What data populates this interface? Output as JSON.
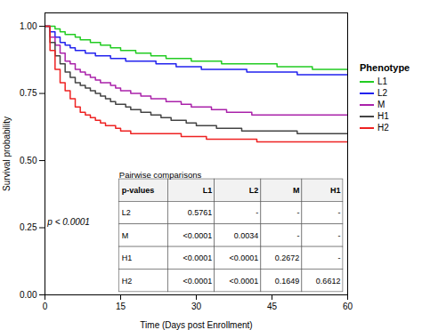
{
  "chart_data": {
    "type": "line",
    "xlabel": "Time (Days post Enrollment)",
    "ylabel": "Survival probability",
    "xlim": [
      0,
      60
    ],
    "ylim": [
      0.0,
      1.05
    ],
    "xticks": [
      0,
      15,
      30,
      45,
      60
    ],
    "yticks": [
      {
        "value": 0.0,
        "label": "0.00"
      },
      0.25,
      {
        "value": 0.5,
        "label": "0.50"
      },
      0.75,
      {
        "value": 1.0,
        "label": "1.00"
      }
    ],
    "grid": false,
    "legend": "right",
    "legend_title": "Phenotype",
    "x": [
      0,
      1,
      2,
      3,
      4,
      5,
      6,
      7,
      8,
      9,
      10,
      11,
      12,
      13,
      14,
      15,
      16,
      17,
      18,
      19,
      20,
      21,
      22,
      23,
      24,
      25,
      26,
      27,
      28,
      29,
      30,
      31,
      32,
      33,
      34,
      35,
      36,
      37,
      38,
      39,
      40,
      41,
      42,
      43,
      44,
      45,
      46,
      47,
      48,
      49,
      50,
      51,
      52,
      53,
      54,
      55,
      56,
      57,
      58,
      59,
      60
    ],
    "series": [
      {
        "name": "L1",
        "color": "#22CC22",
        "type": "step",
        "values": [
          1.0,
          1.0,
          0.99,
          0.98,
          0.97,
          0.97,
          0.96,
          0.95,
          0.95,
          0.94,
          0.94,
          0.93,
          0.93,
          0.92,
          0.92,
          0.91,
          0.91,
          0.91,
          0.9,
          0.9,
          0.9,
          0.89,
          0.89,
          0.89,
          0.88,
          0.88,
          0.88,
          0.88,
          0.88,
          0.87,
          0.87,
          0.87,
          0.87,
          0.87,
          0.87,
          0.86,
          0.86,
          0.86,
          0.86,
          0.86,
          0.86,
          0.86,
          0.86,
          0.86,
          0.86,
          0.86,
          0.85,
          0.85,
          0.85,
          0.85,
          0.85,
          0.85,
          0.85,
          0.84,
          0.84,
          0.84,
          0.84,
          0.84,
          0.84,
          0.84,
          0.84
        ]
      },
      {
        "name": "L2",
        "color": "#2222EE",
        "type": "step",
        "values": [
          1.0,
          0.98,
          0.96,
          0.94,
          0.93,
          0.92,
          0.91,
          0.91,
          0.9,
          0.9,
          0.89,
          0.89,
          0.89,
          0.88,
          0.88,
          0.88,
          0.87,
          0.87,
          0.87,
          0.87,
          0.87,
          0.87,
          0.86,
          0.86,
          0.86,
          0.86,
          0.85,
          0.85,
          0.85,
          0.85,
          0.85,
          0.84,
          0.84,
          0.84,
          0.84,
          0.84,
          0.84,
          0.84,
          0.84,
          0.84,
          0.83,
          0.83,
          0.83,
          0.83,
          0.83,
          0.83,
          0.83,
          0.83,
          0.83,
          0.83,
          0.82,
          0.82,
          0.82,
          0.82,
          0.82,
          0.82,
          0.82,
          0.82,
          0.82,
          0.82,
          0.82
        ]
      },
      {
        "name": "M",
        "color": "#AA22AA",
        "type": "step",
        "values": [
          1.0,
          0.96,
          0.93,
          0.9,
          0.87,
          0.86,
          0.84,
          0.83,
          0.82,
          0.81,
          0.8,
          0.79,
          0.79,
          0.78,
          0.77,
          0.76,
          0.76,
          0.75,
          0.75,
          0.74,
          0.74,
          0.73,
          0.73,
          0.73,
          0.72,
          0.72,
          0.72,
          0.71,
          0.71,
          0.7,
          0.7,
          0.7,
          0.7,
          0.69,
          0.69,
          0.69,
          0.68,
          0.68,
          0.68,
          0.68,
          0.68,
          0.67,
          0.67,
          0.67,
          0.67,
          0.67,
          0.67,
          0.67,
          0.67,
          0.67,
          0.67,
          0.67,
          0.67,
          0.67,
          0.67,
          0.67,
          0.67,
          0.67,
          0.67,
          0.67,
          0.67
        ]
      },
      {
        "name": "H1",
        "color": "#444444",
        "type": "step",
        "values": [
          1.0,
          0.94,
          0.89,
          0.86,
          0.83,
          0.81,
          0.79,
          0.78,
          0.77,
          0.76,
          0.75,
          0.74,
          0.73,
          0.72,
          0.71,
          0.71,
          0.7,
          0.69,
          0.69,
          0.68,
          0.68,
          0.67,
          0.67,
          0.66,
          0.66,
          0.65,
          0.65,
          0.65,
          0.64,
          0.64,
          0.63,
          0.63,
          0.63,
          0.63,
          0.62,
          0.62,
          0.62,
          0.62,
          0.62,
          0.61,
          0.61,
          0.61,
          0.61,
          0.61,
          0.61,
          0.61,
          0.61,
          0.61,
          0.61,
          0.61,
          0.6,
          0.6,
          0.6,
          0.6,
          0.6,
          0.6,
          0.6,
          0.6,
          0.6,
          0.6,
          0.6
        ]
      },
      {
        "name": "H2",
        "color": "#EE2222",
        "type": "step",
        "values": [
          1.0,
          0.91,
          0.84,
          0.79,
          0.76,
          0.73,
          0.7,
          0.68,
          0.67,
          0.66,
          0.65,
          0.64,
          0.63,
          0.63,
          0.62,
          0.61,
          0.61,
          0.6,
          0.6,
          0.6,
          0.6,
          0.6,
          0.6,
          0.6,
          0.6,
          0.6,
          0.6,
          0.59,
          0.59,
          0.59,
          0.59,
          0.59,
          0.58,
          0.58,
          0.58,
          0.58,
          0.58,
          0.58,
          0.58,
          0.58,
          0.58,
          0.58,
          0.57,
          0.57,
          0.57,
          0.57,
          0.57,
          0.57,
          0.57,
          0.57,
          0.57,
          0.57,
          0.57,
          0.57,
          0.57,
          0.57,
          0.57,
          0.57,
          0.57,
          0.57,
          0.57
        ]
      }
    ],
    "annotations": [
      {
        "text": "p < 0.0001",
        "x": 0.5,
        "y": 0.27
      }
    ],
    "table": {
      "title": "Pairwise comparisons",
      "col_headers": [
        "p-values",
        "L1",
        "L2",
        "M",
        "H1"
      ],
      "rows": [
        [
          "L2",
          "0.5761",
          "-",
          "-",
          "-"
        ],
        [
          "M",
          "<0.0001",
          "0.0034",
          "-",
          "-"
        ],
        [
          "H1",
          "<0.0001",
          "<0.0001",
          "0.2672",
          "-"
        ],
        [
          "H2",
          "<0.0001",
          "<0.0001",
          "0.1649",
          "0.6612"
        ]
      ]
    }
  }
}
